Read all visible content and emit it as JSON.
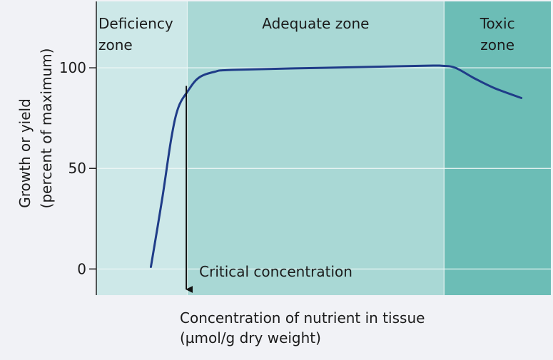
{
  "chart_data": {
    "type": "line",
    "ylabel_line1": "Growth or yield",
    "ylabel_line2": "(percent of maximum)",
    "xlabel_line1": "Concentration of nutrient in tissue",
    "xlabel_line2": "(µmol/g dry weight)",
    "yticks": [
      0,
      50,
      100
    ],
    "ylim": [
      -13,
      133
    ],
    "xlim": [
      0,
      10
    ],
    "grid": true,
    "zones": [
      {
        "name_line1": "Deficiency",
        "name_line2": "zone",
        "x_start": 0,
        "x_end": 2.0,
        "color": "#cde8e8"
      },
      {
        "name_line1": "Adequate zone",
        "name_line2": "",
        "x_start": 2.0,
        "x_end": 7.65,
        "color": "#a9d8d5"
      },
      {
        "name_line1": "Toxic",
        "name_line2": "zone",
        "x_start": 7.65,
        "x_end": 10,
        "color": "#6cbdb6"
      }
    ],
    "series": [
      {
        "color": "#1f3c88",
        "x": [
          1.2,
          1.45,
          1.65,
          1.8,
          2.0,
          2.25,
          2.6,
          3.0,
          5.0,
          7.2,
          7.6,
          7.9,
          8.3,
          8.75,
          9.35
        ],
        "y": [
          1,
          35,
          65,
          80,
          88,
          95,
          98,
          99,
          100,
          101,
          101,
          100,
          95,
          90,
          85
        ]
      }
    ],
    "annotations": [
      {
        "text": "Critical concentration",
        "x": 1.98,
        "y_from": 91,
        "y_to": -13
      }
    ]
  }
}
